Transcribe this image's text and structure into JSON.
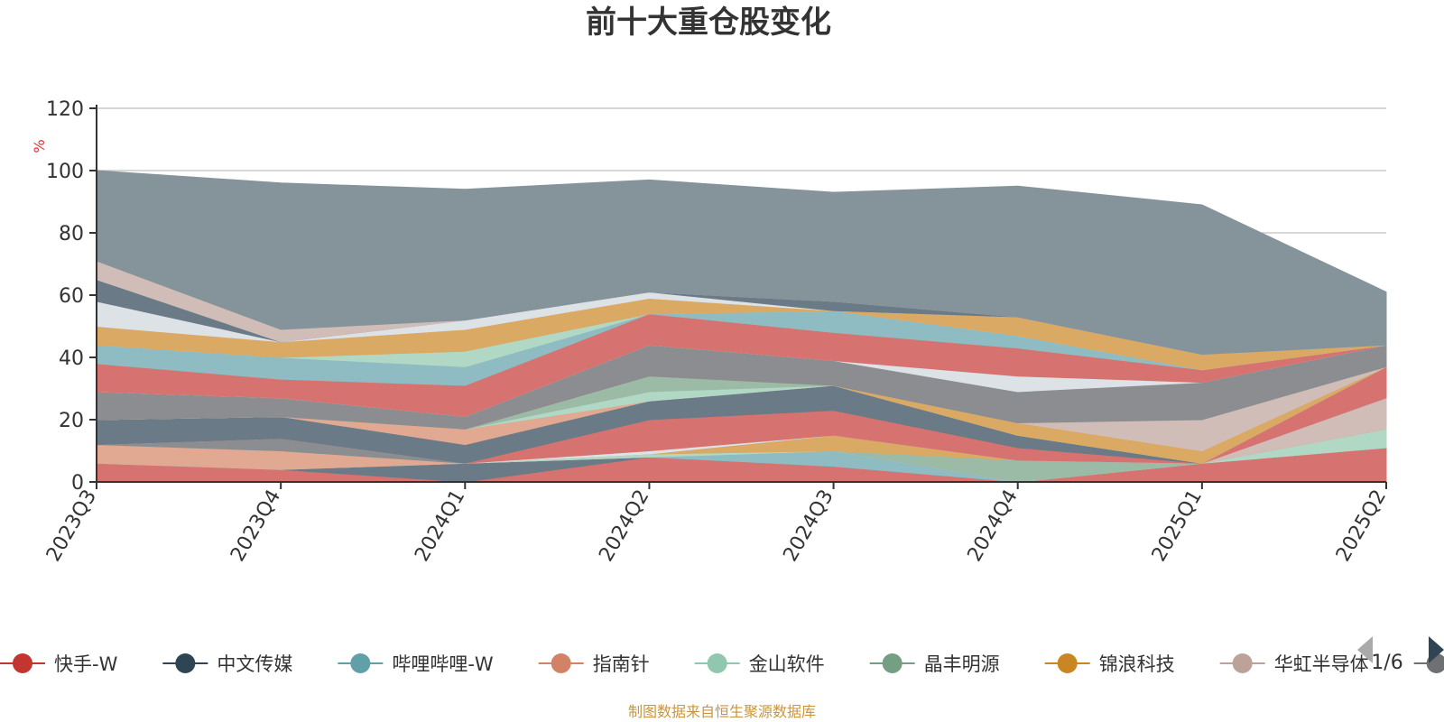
{
  "chart_data": {
    "type": "area",
    "stacked": true,
    "title": "前十大重仓股变化",
    "y_unit": "%",
    "ylim": [
      0,
      120
    ],
    "y_ticks": [
      0,
      20,
      40,
      60,
      80,
      100,
      120
    ],
    "grid": true,
    "legend_position": "bottom",
    "x": [
      "2023Q3",
      "2023Q4",
      "2024Q1",
      "2024Q2",
      "2024Q3",
      "2024Q4",
      "2025Q1",
      "2025Q2"
    ],
    "series": [
      {
        "name": "快手-W",
        "color": "#c23531",
        "fill": "#d67370",
        "values": [
          6,
          4,
          0,
          8,
          5,
          0,
          6,
          11
        ]
      },
      {
        "name": "中文传媒",
        "color": "#2f4554",
        "fill": "#6a7a86",
        "values": [
          0,
          0,
          6,
          0,
          0,
          0,
          0,
          0
        ]
      },
      {
        "name": "哔哩哔哩-W",
        "color": "#61a0a8",
        "fill": "#8ebcc2",
        "values": [
          0,
          0,
          0,
          0,
          5,
          0,
          0,
          0
        ]
      },
      {
        "name": "指南针",
        "color": "#d48265",
        "fill": "#e1a892",
        "values": [
          6,
          6,
          0,
          0,
          0,
          0,
          0,
          0
        ]
      },
      {
        "name": "金山软件",
        "color": "#91c7ae",
        "fill": "#b0d8c5",
        "values": [
          0,
          0,
          0,
          1,
          0,
          0,
          0,
          6
        ]
      },
      {
        "name": "晶丰明源",
        "color": "#749f83",
        "fill": "#9cbba7",
        "values": [
          0,
          0,
          0,
          0,
          0,
          7,
          0,
          0
        ]
      },
      {
        "name": "锦浪科技",
        "color": "#ca8622",
        "fill": "#daa964",
        "values": [
          0,
          0,
          0,
          0,
          5,
          0,
          0,
          0
        ]
      },
      {
        "name": "华虹半导体",
        "color": "#bda29a",
        "fill": "#d1bdb7",
        "values": [
          0,
          0,
          0,
          0,
          0,
          0,
          0,
          10
        ]
      },
      {
        "name": "",
        "color": "#6e7074",
        "fill": "#8b8d90",
        "values": [
          0,
          4,
          0,
          0,
          0,
          0,
          0,
          0
        ]
      },
      {
        "name": "",
        "color": "#546570",
        "fill": "#7f8c95",
        "values": [
          0,
          0,
          0,
          0,
          0,
          0,
          0,
          0
        ]
      },
      {
        "name": "",
        "color": "#c4ccd3",
        "fill": "#dde2e6",
        "values": [
          0,
          0,
          0,
          1,
          0,
          0,
          0,
          0
        ]
      },
      {
        "name": "",
        "color": "#c23531",
        "fill": "#d67370",
        "values": [
          0,
          0,
          0,
          10,
          8,
          4,
          0,
          10
        ]
      },
      {
        "name": "",
        "color": "#2f4554",
        "fill": "#6a7a86",
        "values": [
          8,
          7,
          6,
          6,
          8,
          4,
          0,
          0
        ]
      },
      {
        "name": "",
        "color": "#61a0a8",
        "fill": "#8ebcc2",
        "values": [
          0,
          0,
          0,
          0,
          0,
          0,
          0,
          0
        ]
      },
      {
        "name": "",
        "color": "#d48265",
        "fill": "#e1a892",
        "values": [
          0,
          0,
          5,
          0,
          0,
          0,
          0,
          0
        ]
      },
      {
        "name": "",
        "color": "#91c7ae",
        "fill": "#b0d8c5",
        "values": [
          0,
          0,
          0,
          3,
          0,
          0,
          0,
          0
        ]
      },
      {
        "name": "",
        "color": "#749f83",
        "fill": "#9cbba7",
        "values": [
          0,
          0,
          0,
          5,
          0,
          0,
          0,
          0
        ]
      },
      {
        "name": "",
        "color": "#ca8622",
        "fill": "#daa964",
        "values": [
          0,
          0,
          0,
          0,
          0,
          4,
          4,
          0
        ]
      },
      {
        "name": "",
        "color": "#bda29a",
        "fill": "#d1bdb7",
        "values": [
          0,
          0,
          0,
          0,
          0,
          0,
          10,
          0
        ]
      },
      {
        "name": "",
        "color": "#6e7074",
        "fill": "#8b8d90",
        "values": [
          9,
          6,
          4,
          10,
          8,
          10,
          12,
          7
        ]
      },
      {
        "name": "",
        "color": "#546570",
        "fill": "#7f8c95",
        "values": [
          0,
          0,
          0,
          0,
          0,
          0,
          0,
          0
        ]
      },
      {
        "name": "",
        "color": "#c4ccd3",
        "fill": "#dde2e6",
        "values": [
          0,
          0,
          0,
          0,
          0,
          5,
          0,
          0
        ]
      },
      {
        "name": "",
        "color": "#c23531",
        "fill": "#d67370",
        "values": [
          9,
          6,
          10,
          10,
          9,
          9,
          4,
          0
        ]
      },
      {
        "name": "",
        "color": "#61a0a8",
        "fill": "#8ebcc2",
        "values": [
          6,
          7,
          6,
          0,
          7,
          4,
          0,
          0
        ]
      },
      {
        "name": "",
        "color": "#91c7ae",
        "fill": "#b0d8c5",
        "values": [
          0,
          0,
          5,
          0,
          0,
          0,
          0,
          0
        ]
      },
      {
        "name": "",
        "color": "#ca8622",
        "fill": "#daa964",
        "values": [
          6,
          5,
          7,
          5,
          0,
          6,
          5,
          0
        ]
      },
      {
        "name": "",
        "color": "#c4ccd3",
        "fill": "#dde2e6",
        "values": [
          8,
          0,
          3,
          2,
          0,
          0,
          0,
          0
        ]
      },
      {
        "name": "",
        "color": "#2f4554",
        "fill": "#6a7a86",
        "values": [
          7,
          0,
          0,
          0,
          3,
          0,
          0,
          0
        ]
      },
      {
        "name": "",
        "color": "#bda29a",
        "fill": "#d1bdb7",
        "values": [
          6,
          4,
          0,
          0,
          0,
          0,
          0,
          0
        ]
      },
      {
        "name": "",
        "color": "#546570",
        "fill": "#85939b",
        "values": [
          29,
          47,
          42,
          36,
          35,
          42,
          48,
          17
        ]
      }
    ]
  },
  "legend": {
    "items": [
      {
        "name": "快手-W",
        "color": "#c23531"
      },
      {
        "name": "中文传媒",
        "color": "#2f4554"
      },
      {
        "name": "哔哩哔哩-W",
        "color": "#61a0a8"
      },
      {
        "name": "指南针",
        "color": "#d48265"
      },
      {
        "name": "金山软件",
        "color": "#91c7ae"
      },
      {
        "name": "晶丰明源",
        "color": "#749f83"
      },
      {
        "name": "锦浪科技",
        "color": "#ca8622"
      },
      {
        "name": "华虹半导体",
        "color": "#bda29a"
      },
      {
        "name": "",
        "color": "#6e7074"
      }
    ],
    "page": "1/6",
    "prev_icon": "triangle-left-icon",
    "next_icon": "triangle-right-icon"
  },
  "footer": {
    "text": "制图数据来自恒生聚源数据库",
    "color": "#c8963e"
  },
  "colors": {
    "axis": "#333333",
    "grid": "#cccccc",
    "unit": "#e03030"
  }
}
